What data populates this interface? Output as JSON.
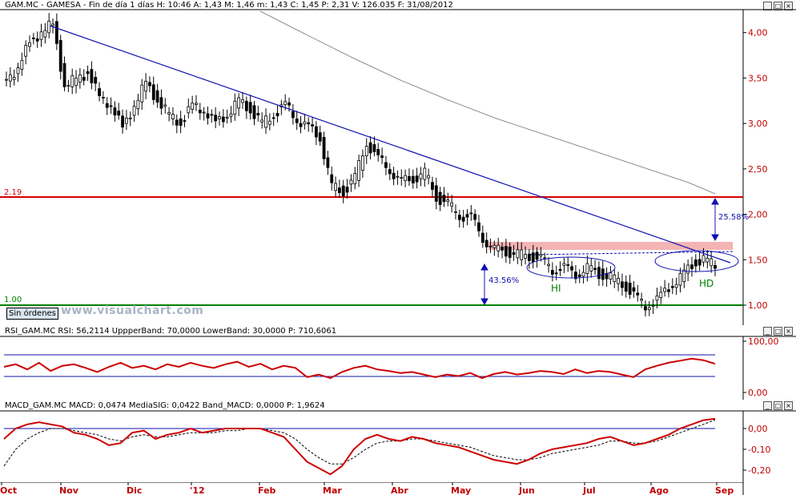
{
  "header": {
    "symbol": "GAM.MC",
    "name": "GAMESA",
    "period": "Fin de día 1 días",
    "H": "10:46",
    "A": "1,43",
    "M": "1,46",
    "m": "1,43",
    "C": "1,45",
    "P": "2,31",
    "V": "126.035",
    "F": "31/08/2012",
    "text": "GAM.MC - GAMESA - Fin de día 1 días H: 10:46  A: 1,43  M: 1,46  m: 1,43  C: 1,45  P: 2,31  V: 126.035  F: 31/08/2012"
  },
  "rsi_header": {
    "name": "RSI_GAM.MC",
    "text": "RSI_GAM.MC  RSI: 56,2114  UppperBand: 70,0000  LowerBand: 30,0000  P: 710,6061"
  },
  "macd_header": {
    "name": "MACD_GAM.MC",
    "text": "MACD_GAM.MC  MACD: 0,0474  MediaSIG: 0,0422  Band_MACD: 0,0000  P: 1,9624"
  },
  "buttons": {
    "sin_ordenes": "Sin órdenes"
  },
  "watermark": "www.visualchart.com",
  "controls": {
    "minimize": "_",
    "restore": "□",
    "close": "×"
  },
  "colors": {
    "resistance": "#d40000",
    "support": "#008000",
    "trend": "#1010b0",
    "ma": "#909090",
    "rsi": "#cc0000",
    "macd": "#cc0000",
    "zone": "#f4b4b4",
    "axis_text": "#c00000"
  },
  "chart_data": [
    {
      "type": "candlestick",
      "title": "GAM.MC - GAMESA",
      "x_labels": [
        "Oct",
        "Nov",
        "Dic",
        "'12",
        "Feb",
        "Mar",
        "Abr",
        "May",
        "Jun",
        "Jul",
        "Ago",
        "Sep"
      ],
      "y_ticks": [
        "4,00",
        "3,50",
        "3,00",
        "2,50",
        "2,00",
        "1,50",
        "1,00"
      ],
      "ylim": [
        0.78,
        4.3
      ],
      "approx_closes": [
        3.5,
        3.6,
        3.9,
        4.0,
        4.1,
        3.4,
        3.5,
        3.55,
        3.3,
        3.2,
        2.95,
        3.2,
        3.45,
        3.25,
        3.1,
        3.0,
        3.2,
        3.15,
        3.0,
        3.1,
        3.25,
        3.15,
        3.0,
        3.1,
        3.2,
        3.05,
        2.95,
        2.85,
        2.3,
        2.25,
        2.4,
        2.8,
        2.6,
        2.5,
        2.35,
        2.4,
        2.45,
        2.2,
        2.1,
        2.0,
        1.95,
        1.75,
        1.6,
        1.6,
        1.55,
        1.55,
        1.5,
        1.4,
        1.4,
        1.35,
        1.4,
        1.35,
        1.3,
        1.25,
        1.1,
        1.0,
        1.05,
        1.2,
        1.3,
        1.45,
        1.5,
        1.45
      ],
      "horizontal_lines": [
        {
          "label": "2.19",
          "value": 2.19
        },
        {
          "label": "1.00",
          "value": 1.0
        }
      ],
      "annotations": [
        {
          "text": "25.58%"
        },
        {
          "text": "43.56%"
        },
        {
          "text": "HI"
        },
        {
          "text": "HD"
        }
      ],
      "moving_average_approx": [
        4.2,
        3.95,
        3.65,
        3.4,
        3.2,
        3.0,
        2.85,
        2.7,
        2.6,
        2.5,
        2.38,
        2.28,
        2.22
      ]
    },
    {
      "type": "line",
      "name": "RSI",
      "y_ticks": [
        "100,00",
        "0,00"
      ],
      "ylim": [
        0,
        100
      ],
      "bands": [
        70,
        30
      ],
      "values": [
        50,
        55,
        45,
        58,
        42,
        52,
        55,
        48,
        40,
        50,
        58,
        48,
        52,
        45,
        55,
        50,
        58,
        52,
        48,
        55,
        60,
        50,
        56,
        45,
        52,
        48,
        30,
        35,
        28,
        40,
        48,
        52,
        45,
        42,
        38,
        40,
        35,
        30,
        35,
        32,
        38,
        28,
        36,
        40,
        35,
        38,
        42,
        40,
        36,
        45,
        38,
        42,
        40,
        35,
        30,
        45,
        52,
        58,
        62,
        66,
        63,
        56
      ]
    },
    {
      "type": "line",
      "name": "MACD",
      "y_ticks": [
        "0,00",
        "-0,10",
        "-0,20"
      ],
      "ylim": [
        -0.24,
        0.05
      ],
      "series": [
        {
          "name": "MACD",
          "values": [
            -0.05,
            0.0,
            0.02,
            0.03,
            0.02,
            0.01,
            -0.02,
            -0.03,
            -0.05,
            -0.08,
            -0.07,
            -0.02,
            -0.01,
            -0.05,
            -0.03,
            -0.02,
            0.0,
            -0.02,
            -0.01,
            0.0,
            0.0,
            0.0,
            0.0,
            -0.02,
            -0.04,
            -0.1,
            -0.16,
            -0.19,
            -0.22,
            -0.18,
            -0.1,
            -0.05,
            -0.03,
            -0.05,
            -0.06,
            -0.04,
            -0.05,
            -0.07,
            -0.08,
            -0.09,
            -0.11,
            -0.13,
            -0.15,
            -0.16,
            -0.17,
            -0.15,
            -0.12,
            -0.1,
            -0.09,
            -0.08,
            -0.07,
            -0.05,
            -0.04,
            -0.06,
            -0.08,
            -0.07,
            -0.05,
            -0.03,
            0.0,
            0.02,
            0.04,
            0.047
          ]
        },
        {
          "name": "MediaSIG",
          "values": [
            -0.18,
            -0.1,
            -0.05,
            -0.02,
            0.0,
            0.0,
            -0.01,
            -0.02,
            -0.03,
            -0.05,
            -0.06,
            -0.04,
            -0.03,
            -0.04,
            -0.04,
            -0.03,
            -0.02,
            -0.02,
            -0.02,
            -0.01,
            -0.01,
            0.0,
            0.0,
            -0.01,
            -0.02,
            -0.05,
            -0.1,
            -0.14,
            -0.17,
            -0.17,
            -0.14,
            -0.1,
            -0.07,
            -0.06,
            -0.06,
            -0.05,
            -0.05,
            -0.06,
            -0.07,
            -0.08,
            -0.09,
            -0.11,
            -0.13,
            -0.14,
            -0.15,
            -0.15,
            -0.14,
            -0.12,
            -0.11,
            -0.1,
            -0.09,
            -0.08,
            -0.06,
            -0.06,
            -0.07,
            -0.07,
            -0.06,
            -0.04,
            -0.02,
            0.0,
            0.02,
            0.042
          ]
        }
      ],
      "band": 0.0
    }
  ]
}
